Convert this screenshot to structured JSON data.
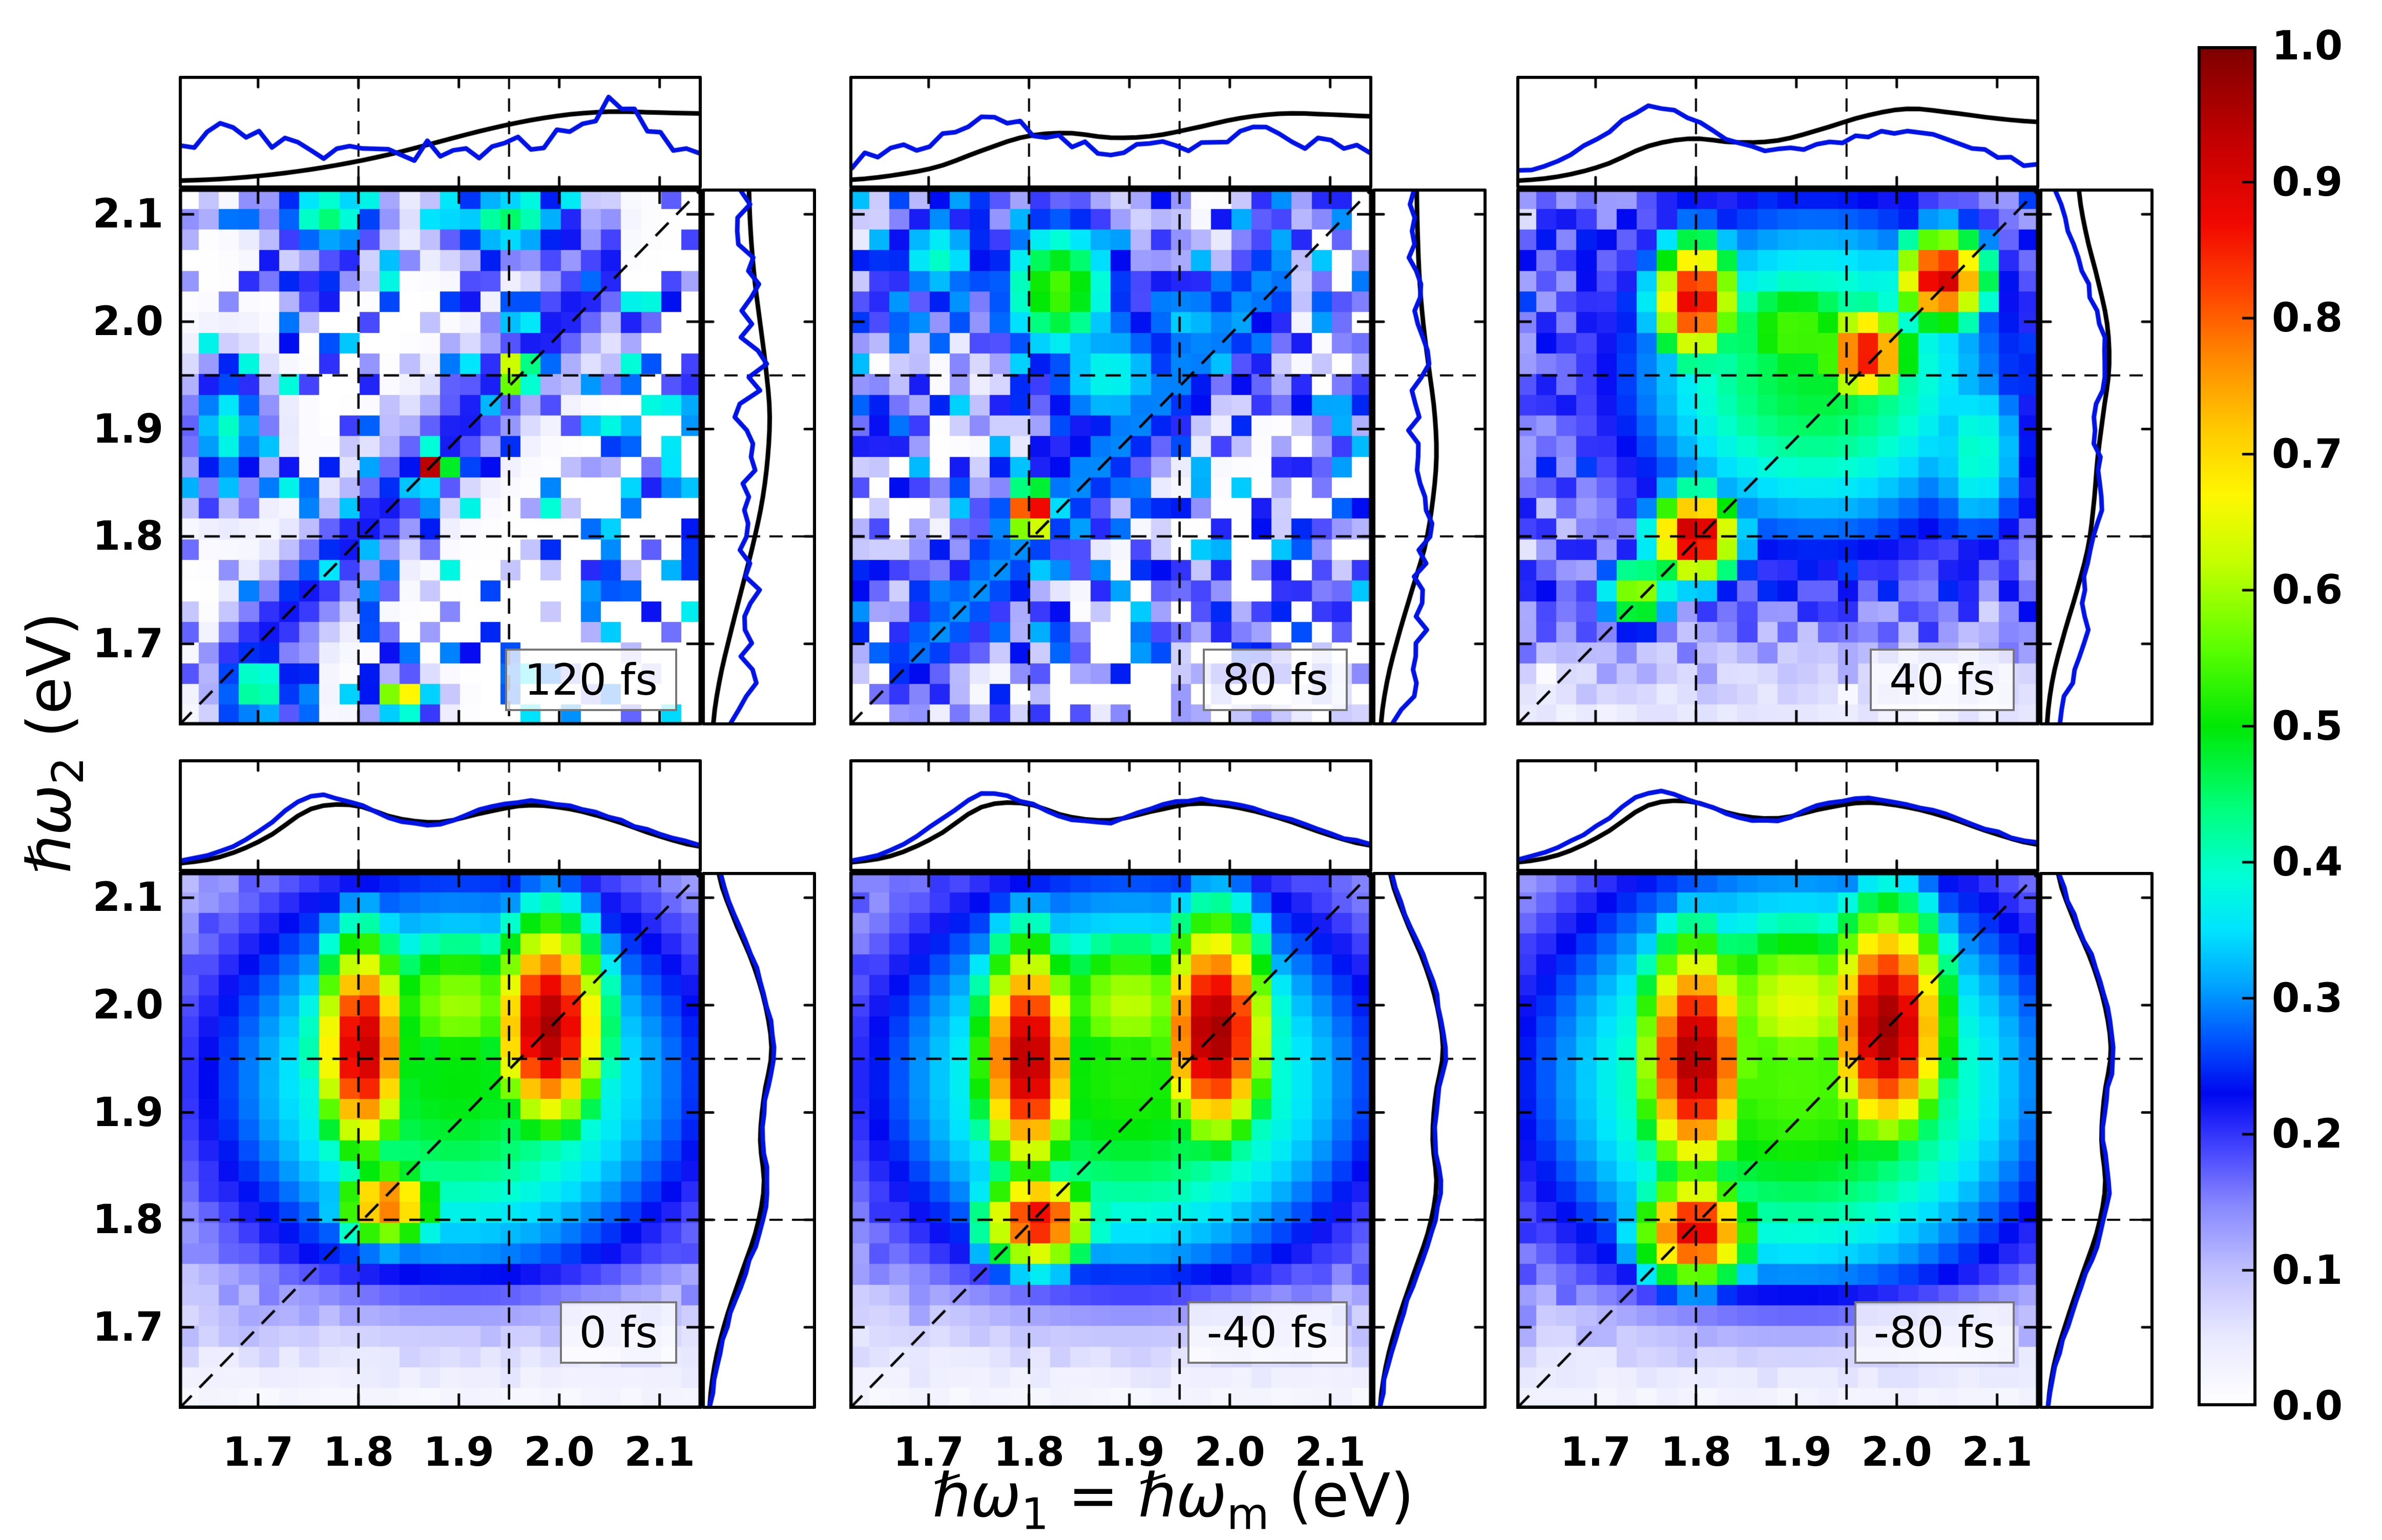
{
  "axis_labels": {
    "y": {
      "sym": "ℏω",
      "sub": "2",
      "unit": "  (eV)"
    },
    "x": {
      "sym1": "ℏω",
      "sub1": "1",
      "eq": " = ",
      "sym2": "ℏω",
      "sub2": "m",
      "unit": "  (eV)"
    }
  },
  "chart_data": {
    "type": "heatmap",
    "title": "",
    "x_label": "ℏω1 = ℏωm (eV)",
    "y_label": "ℏω2 (eV)",
    "x_ticks": [
      "1.7",
      "1.8",
      "1.9",
      "2.0",
      "2.1"
    ],
    "y_ticks": [
      "2.1",
      "2.0",
      "1.9",
      "1.8",
      "1.7"
    ],
    "x_tick_values": [
      1.7,
      1.8,
      1.9,
      2.0,
      2.1
    ],
    "y_tick_values": [
      2.1,
      2.0,
      1.9,
      1.8,
      1.7
    ],
    "x_range": [
      1.621,
      2.142
    ],
    "y_range": [
      1.624,
      2.124
    ],
    "grid_on": false,
    "guides": {
      "x": [
        1.8,
        1.95
      ],
      "y": [
        1.8,
        1.95
      ],
      "diagonal": true
    },
    "grid_n": 26,
    "colors": {
      "curve_blue": "#0013e6",
      "curve_black": "#000000",
      "label_box_border": "#777777"
    },
    "colormap_stops": [
      [
        0.0,
        "#ffffff"
      ],
      [
        0.05,
        "#eaeaff"
      ],
      [
        0.1,
        "#c0c0ff"
      ],
      [
        0.15,
        "#8585ff"
      ],
      [
        0.19,
        "#4444ff"
      ],
      [
        0.23,
        "#0008f0"
      ],
      [
        0.27,
        "#0055ff"
      ],
      [
        0.31,
        "#00a4ff"
      ],
      [
        0.35,
        "#00e4ff"
      ],
      [
        0.39,
        "#00ffd5"
      ],
      [
        0.44,
        "#00ff7b"
      ],
      [
        0.5,
        "#00e805"
      ],
      [
        0.56,
        "#5fff00"
      ],
      [
        0.62,
        "#c3ff00"
      ],
      [
        0.67,
        "#fff700"
      ],
      [
        0.72,
        "#ffc800"
      ],
      [
        0.77,
        "#ff8a00"
      ],
      [
        0.82,
        "#ff4300"
      ],
      [
        0.87,
        "#f10800"
      ],
      [
        0.93,
        "#c40000"
      ],
      [
        1.0,
        "#7d0000"
      ]
    ],
    "colorbar": {
      "min": 0.0,
      "max": 1.0,
      "tick_labels": [
        "1.0",
        "0.9",
        "0.8",
        "0.7",
        "0.6",
        "0.5",
        "0.4",
        "0.3",
        "0.2",
        "0.1",
        "0.0"
      ]
    },
    "panels": [
      {
        "label": "120 fs",
        "row": 0,
        "col": 0,
        "seed": 7,
        "sparse": 0.58,
        "rbase": 0.09,
        "noise": 0.3,
        "diag": 0.22,
        "fade": null,
        "peaks": [
          [
            1.875,
            1.865,
            0.014,
            0.014,
            0.97
          ],
          [
            1.957,
            1.952,
            0.016,
            0.014,
            0.8
          ],
          [
            1.845,
            1.648,
            0.022,
            0.013,
            0.75
          ],
          [
            1.67,
            1.9,
            0.03,
            0.045,
            0.4
          ],
          [
            1.77,
            2.1,
            0.04,
            0.028,
            0.45
          ],
          [
            1.95,
            2.095,
            0.05,
            0.026,
            0.45
          ],
          [
            1.7,
            1.66,
            0.03,
            0.03,
            0.45
          ]
        ],
        "marginals": {
          "top_blue": [
            0.3,
            0.65,
            0.48,
            0.3,
            0.36,
            0.28,
            0.4,
            0.32,
            0.42,
            0.55,
            0.85,
            0.5,
            0.42
          ],
          "top_black": [
            0.03,
            0.05,
            0.09,
            0.15,
            0.23,
            0.33,
            0.45,
            0.57,
            0.67,
            0.74,
            0.77,
            0.76,
            0.75
          ],
          "right_blue": [
            0.3,
            0.45,
            0.38,
            0.52,
            0.42,
            0.38,
            0.48,
            0.4,
            0.55,
            0.45,
            0.5,
            0.42,
            0.38
          ],
          "right_black": [
            0.08,
            0.15,
            0.26,
            0.38,
            0.5,
            0.6,
            0.66,
            0.68,
            0.64,
            0.58,
            0.52,
            0.48,
            0.46
          ],
          "jitter": 0.11
        }
      },
      {
        "label": "80 fs",
        "row": 0,
        "col": 1,
        "seed": 13,
        "sparse": 0.3,
        "rbase": 0.08,
        "noise": 0.26,
        "diag": 0.3,
        "fade": [
          1.7,
          0.55
        ],
        "peaks": [
          [
            1.803,
            1.823,
            0.02,
            0.02,
            0.96
          ],
          [
            1.83,
            2.03,
            0.05,
            0.055,
            0.55
          ],
          [
            1.71,
            2.06,
            0.04,
            0.035,
            0.4
          ],
          [
            1.88,
            1.95,
            0.06,
            0.05,
            0.38
          ],
          [
            1.96,
            2.0,
            0.05,
            0.04,
            0.33
          ]
        ],
        "marginals": {
          "top_blue": [
            0.22,
            0.32,
            0.5,
            0.7,
            0.62,
            0.45,
            0.38,
            0.5,
            0.42,
            0.55,
            0.48,
            0.4,
            0.35
          ],
          "top_black": [
            0.04,
            0.09,
            0.18,
            0.35,
            0.5,
            0.54,
            0.49,
            0.51,
            0.6,
            0.7,
            0.75,
            0.74,
            0.72
          ],
          "right_blue": [
            0.25,
            0.38,
            0.52,
            0.42,
            0.5,
            0.58,
            0.46,
            0.42,
            0.5,
            0.44,
            0.4,
            0.36,
            0.32
          ],
          "right_black": [
            0.05,
            0.12,
            0.24,
            0.38,
            0.52,
            0.6,
            0.64,
            0.62,
            0.56,
            0.5,
            0.46,
            0.44,
            0.43
          ],
          "jitter": 0.09
        }
      },
      {
        "label": "40 fs",
        "row": 0,
        "col": 2,
        "seed": 21,
        "sparse": 0.05,
        "rbase": 0.12,
        "noise": 0.14,
        "diag": 0,
        "fade": [
          1.74,
          0.18
        ],
        "peaks": [
          [
            1.8,
            2.02,
            0.036,
            0.05,
            0.9
          ],
          [
            1.8,
            1.8,
            0.036,
            0.036,
            0.95
          ],
          [
            1.742,
            1.745,
            0.03,
            0.03,
            0.62
          ],
          [
            1.97,
            1.97,
            0.04,
            0.04,
            0.88
          ],
          [
            2.045,
            2.04,
            0.04,
            0.038,
            0.92
          ],
          [
            1.9,
            1.99,
            0.08,
            0.06,
            0.55
          ],
          [
            1.92,
            1.95,
            0.17,
            0.14,
            0.48
          ],
          [
            2.08,
            1.88,
            0.05,
            0.085,
            0.4
          ]
        ],
        "marginals": {
          "top_blue": [
            0.12,
            0.28,
            0.55,
            0.82,
            0.7,
            0.46,
            0.36,
            0.42,
            0.5,
            0.56,
            0.48,
            0.32,
            0.18
          ],
          "top_black": [
            0.03,
            0.08,
            0.2,
            0.4,
            0.48,
            0.44,
            0.46,
            0.58,
            0.72,
            0.8,
            0.76,
            0.7,
            0.66
          ],
          "right_blue": [
            0.15,
            0.3,
            0.45,
            0.42,
            0.52,
            0.62,
            0.58,
            0.55,
            0.68,
            0.62,
            0.45,
            0.28,
            0.15
          ],
          "right_black": [
            0.04,
            0.1,
            0.22,
            0.36,
            0.48,
            0.54,
            0.58,
            0.64,
            0.7,
            0.68,
            0.58,
            0.46,
            0.38
          ],
          "jitter": 0.03
        }
      },
      {
        "label": "0 fs",
        "row": 1,
        "col": 0,
        "seed": 3,
        "sparse": 0.0,
        "rbase": 0.1,
        "noise": 0.1,
        "diag": 0,
        "fade": [
          1.765,
          0.1
        ],
        "peaks": [
          [
            1.805,
            1.96,
            0.042,
            0.092,
            0.93
          ],
          [
            1.99,
            1.98,
            0.05,
            0.088,
            0.96
          ],
          [
            1.9,
            2.0,
            0.09,
            0.07,
            0.6
          ],
          [
            1.9,
            1.93,
            0.2,
            0.16,
            0.5
          ],
          [
            1.83,
            1.815,
            0.045,
            0.034,
            0.8
          ]
        ],
        "marginals": {
          "top_blue": [
            0.06,
            0.18,
            0.45,
            0.76,
            0.68,
            0.5,
            0.46,
            0.62,
            0.7,
            0.65,
            0.52,
            0.36,
            0.24
          ],
          "top_black": [
            0.04,
            0.12,
            0.32,
            0.62,
            0.66,
            0.52,
            0.48,
            0.58,
            0.66,
            0.62,
            0.5,
            0.34,
            0.22
          ],
          "right_blue": [
            0.05,
            0.12,
            0.25,
            0.42,
            0.58,
            0.66,
            0.6,
            0.64,
            0.72,
            0.66,
            0.52,
            0.32,
            0.16
          ],
          "right_black": [
            0.04,
            0.1,
            0.22,
            0.38,
            0.54,
            0.62,
            0.58,
            0.62,
            0.7,
            0.64,
            0.5,
            0.3,
            0.14
          ],
          "jitter": 0.012
        }
      },
      {
        "label": "-40 fs",
        "row": 1,
        "col": 1,
        "seed": 5,
        "sparse": 0.0,
        "rbase": 0.1,
        "noise": 0.1,
        "diag": 0,
        "fade": [
          1.76,
          0.1
        ],
        "peaks": [
          [
            1.8,
            1.95,
            0.045,
            0.098,
            0.95
          ],
          [
            1.985,
            1.975,
            0.05,
            0.094,
            0.97
          ],
          [
            1.9,
            2.0,
            0.09,
            0.07,
            0.62
          ],
          [
            1.9,
            1.93,
            0.2,
            0.16,
            0.52
          ],
          [
            1.81,
            1.8,
            0.05,
            0.04,
            0.88
          ]
        ],
        "marginals": {
          "top_blue": [
            0.07,
            0.2,
            0.48,
            0.78,
            0.7,
            0.52,
            0.48,
            0.64,
            0.72,
            0.66,
            0.53,
            0.37,
            0.25
          ],
          "top_black": [
            0.05,
            0.13,
            0.34,
            0.64,
            0.68,
            0.54,
            0.5,
            0.6,
            0.68,
            0.63,
            0.51,
            0.35,
            0.23
          ],
          "right_blue": [
            0.05,
            0.13,
            0.27,
            0.44,
            0.6,
            0.68,
            0.62,
            0.66,
            0.74,
            0.67,
            0.53,
            0.33,
            0.17
          ],
          "right_black": [
            0.04,
            0.11,
            0.24,
            0.4,
            0.56,
            0.64,
            0.6,
            0.63,
            0.71,
            0.65,
            0.51,
            0.31,
            0.15
          ],
          "jitter": 0.012
        }
      },
      {
        "label": "-80 fs",
        "row": 1,
        "col": 2,
        "seed": 9,
        "sparse": 0.0,
        "rbase": 0.11,
        "noise": 0.1,
        "diag": 0,
        "fade": [
          1.755,
          0.12
        ],
        "peaks": [
          [
            1.8,
            1.95,
            0.05,
            0.1,
            0.96
          ],
          [
            1.99,
            1.98,
            0.055,
            0.098,
            0.97
          ],
          [
            1.9,
            2.0,
            0.1,
            0.08,
            0.65
          ],
          [
            1.9,
            1.93,
            0.21,
            0.17,
            0.55
          ],
          [
            1.8,
            1.79,
            0.05,
            0.045,
            0.9
          ]
        ],
        "marginals": {
          "top_blue": [
            0.08,
            0.22,
            0.5,
            0.8,
            0.72,
            0.54,
            0.5,
            0.66,
            0.73,
            0.67,
            0.54,
            0.38,
            0.26
          ],
          "top_black": [
            0.05,
            0.14,
            0.36,
            0.66,
            0.7,
            0.56,
            0.52,
            0.62,
            0.69,
            0.64,
            0.52,
            0.36,
            0.24
          ],
          "right_blue": [
            0.06,
            0.14,
            0.29,
            0.46,
            0.62,
            0.7,
            0.64,
            0.68,
            0.75,
            0.68,
            0.54,
            0.34,
            0.18
          ],
          "right_black": [
            0.05,
            0.12,
            0.26,
            0.42,
            0.58,
            0.66,
            0.62,
            0.65,
            0.72,
            0.66,
            0.52,
            0.32,
            0.16
          ],
          "jitter": 0.012
        }
      }
    ]
  }
}
